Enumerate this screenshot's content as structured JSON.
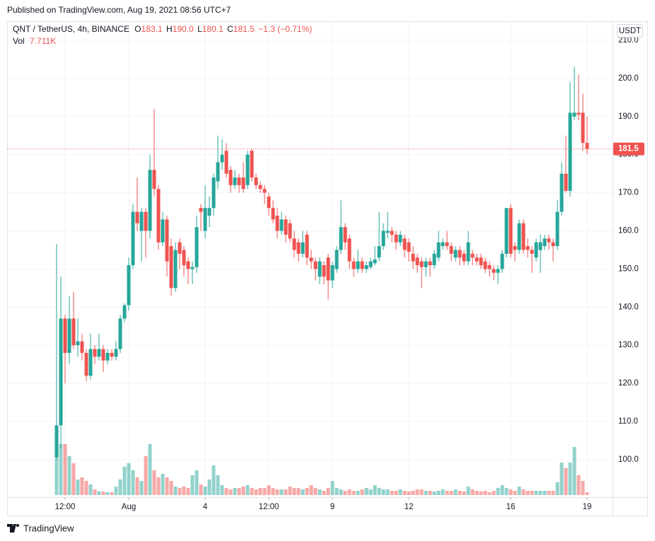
{
  "published": "Published on TradingView.com, Aug 19, 2021 08:56 UTC+7",
  "brand": "TradingView",
  "chart_data": {
    "type": "candlestick",
    "symbol": "QNT / TetherUS, 4h, BINANCE",
    "currency": "USDT",
    "ohlc_letters": [
      "O",
      "H",
      "L",
      "C"
    ],
    "ohlc_labels": [
      "183.1",
      "190.0",
      "180.1",
      "181.5"
    ],
    "change_label": "−1.3 (−0.71%)",
    "volume_title": "Vol",
    "volume_label": "7.711K",
    "up_color": "#26a69a",
    "down_color": "#ef5350",
    "grid": true,
    "candles": [
      [
        100.5,
        156.5,
        100,
        109
      ],
      [
        109,
        148,
        103,
        137
      ],
      [
        137,
        138,
        120,
        128
      ],
      [
        128,
        143,
        125,
        137
      ],
      [
        137,
        144,
        129,
        130
      ],
      [
        130,
        137,
        127,
        131
      ],
      [
        131,
        133,
        126,
        128
      ],
      [
        128,
        129,
        120.5,
        122
      ],
      [
        122,
        133,
        121,
        129
      ],
      [
        129,
        130,
        125,
        127
      ],
      [
        127,
        133,
        126,
        129
      ],
      [
        129,
        130,
        123,
        126
      ],
      [
        126,
        129,
        125,
        128
      ],
      [
        128,
        129,
        126,
        127
      ],
      [
        127,
        131,
        126,
        129
      ],
      [
        129,
        138,
        128,
        137
      ],
      [
        137,
        141,
        136,
        140.5
      ],
      [
        140.5,
        153,
        139,
        151
      ],
      [
        151,
        167,
        150,
        165
      ],
      [
        165,
        174,
        160,
        162
      ],
      [
        160,
        166,
        152,
        165
      ],
      [
        165,
        166,
        153,
        160
      ],
      [
        160,
        180,
        158,
        176
      ],
      [
        176,
        192,
        169,
        171
      ],
      [
        171,
        172,
        155,
        157
      ],
      [
        157,
        165,
        156,
        163
      ],
      [
        163,
        164,
        148,
        152
      ],
      [
        156,
        158,
        143,
        145
      ],
      [
        145,
        157,
        144,
        155
      ],
      [
        157,
        158,
        150,
        154
      ],
      [
        155,
        156,
        148,
        151
      ],
      [
        152,
        153,
        146,
        150
      ],
      [
        150,
        152,
        146,
        150.5
      ],
      [
        150.5,
        164,
        149,
        161
      ],
      [
        166,
        167,
        160,
        165
      ],
      [
        160,
        172,
        158,
        166
      ],
      [
        164,
        169,
        161,
        166
      ],
      [
        166,
        175,
        164,
        174
      ],
      [
        173,
        185,
        171,
        178
      ],
      [
        178,
        184,
        176,
        180
      ],
      [
        181,
        183,
        174,
        175
      ],
      [
        176,
        177,
        170,
        172
      ],
      [
        172,
        176,
        171,
        174
      ],
      [
        174,
        175,
        170,
        172
      ],
      [
        174,
        178,
        170,
        171
      ],
      [
        172,
        181,
        171,
        180
      ],
      [
        181,
        181.5,
        173,
        174
      ],
      [
        174,
        175,
        171,
        172
      ],
      [
        172,
        173,
        170,
        171
      ],
      [
        171,
        172,
        167,
        170
      ],
      [
        169,
        170,
        164,
        166
      ],
      [
        166,
        168,
        162,
        163
      ],
      [
        164,
        166,
        158,
        160
      ],
      [
        160,
        165,
        159,
        163
      ],
      [
        163,
        164,
        157,
        159
      ],
      [
        162,
        163,
        157,
        158
      ],
      [
        158,
        160,
        153,
        155
      ],
      [
        157,
        158,
        152,
        154
      ],
      [
        154,
        160,
        153,
        157
      ],
      [
        159,
        160,
        151,
        153
      ],
      [
        153,
        155,
        150,
        152
      ],
      [
        152,
        153,
        147,
        150
      ],
      [
        148,
        153,
        146,
        152
      ],
      [
        151,
        152,
        146,
        148
      ],
      [
        153,
        154,
        142,
        147
      ],
      [
        147,
        152,
        145,
        151
      ],
      [
        150,
        156,
        149,
        155
      ],
      [
        155,
        168,
        154,
        161
      ],
      [
        161,
        162,
        155,
        157
      ],
      [
        158,
        159,
        150,
        152
      ],
      [
        152,
        153,
        148,
        150
      ],
      [
        150,
        155,
        149,
        152
      ],
      [
        152,
        153,
        149,
        150
      ],
      [
        150,
        152,
        149,
        151
      ],
      [
        150.5,
        153,
        150,
        152
      ],
      [
        151.5,
        156,
        151,
        152.5
      ],
      [
        153,
        165,
        152,
        156
      ],
      [
        156,
        162,
        155,
        160
      ],
      [
        159.5,
        165,
        158,
        160
      ],
      [
        160,
        161,
        157,
        159
      ],
      [
        159,
        160,
        155,
        157
      ],
      [
        157,
        160,
        156,
        159
      ],
      [
        158,
        159,
        153,
        155
      ],
      [
        157,
        158,
        152,
        154.5
      ],
      [
        154,
        156,
        150,
        152
      ],
      [
        153,
        154,
        149,
        151
      ],
      [
        152,
        153,
        145,
        150.5
      ],
      [
        150.5,
        153,
        148,
        152
      ],
      [
        152,
        153,
        148,
        151
      ],
      [
        151,
        155,
        150,
        154
      ],
      [
        153,
        160,
        152,
        157
      ],
      [
        156,
        158,
        155,
        157
      ],
      [
        157,
        160,
        155,
        156
      ],
      [
        156,
        157,
        152,
        154
      ],
      [
        153,
        156,
        152,
        155
      ],
      [
        155,
        156,
        151,
        153
      ],
      [
        154,
        155,
        151,
        152
      ],
      [
        152,
        160,
        151,
        157
      ],
      [
        154,
        155,
        151,
        153
      ],
      [
        153,
        154,
        151,
        152
      ],
      [
        153,
        154,
        150,
        151
      ],
      [
        152,
        153,
        149,
        150
      ],
      [
        151,
        152,
        148,
        150
      ],
      [
        150,
        151,
        147,
        149
      ],
      [
        149,
        151,
        146,
        150
      ],
      [
        150,
        155,
        149,
        154
      ],
      [
        154,
        166,
        153,
        166
      ],
      [
        166,
        167,
        153,
        154
      ],
      [
        156,
        157,
        152,
        155
      ],
      [
        155,
        163,
        154,
        162
      ],
      [
        162,
        163,
        154,
        155
      ],
      [
        156,
        158,
        153,
        155
      ],
      [
        155,
        156,
        149,
        154
      ],
      [
        153,
        158,
        152,
        157
      ],
      [
        155,
        159,
        149,
        157
      ],
      [
        156,
        159,
        155,
        158
      ],
      [
        158,
        159,
        155,
        157
      ],
      [
        157,
        158,
        152,
        156
      ],
      [
        156,
        168,
        155,
        165
      ],
      [
        165,
        178,
        164,
        175
      ],
      [
        175,
        185,
        170,
        170.5
      ],
      [
        170.5,
        199,
        169,
        191
      ],
      [
        190,
        203,
        189,
        191
      ],
      [
        191,
        201,
        189,
        190.5
      ],
      [
        191,
        196,
        181,
        183.1
      ],
      [
        183.1,
        190,
        180.1,
        181.5
      ]
    ],
    "volume": [
      104,
      144,
      144,
      110,
      90,
      44,
      50,
      40,
      30,
      16,
      10,
      10,
      8,
      8,
      24,
      44,
      80,
      90,
      70,
      50,
      40,
      110,
      144,
      70,
      50,
      60,
      50,
      40,
      24,
      20,
      24,
      20,
      56,
      70,
      30,
      24,
      44,
      84,
      56,
      28,
      20,
      16,
      20,
      20,
      24,
      28,
      20,
      16,
      20,
      20,
      28,
      20,
      16,
      16,
      16,
      24,
      20,
      20,
      16,
      20,
      28,
      20,
      16,
      12,
      20,
      40,
      20,
      16,
      12,
      16,
      12,
      12,
      16,
      20,
      16,
      28,
      20,
      16,
      16,
      12,
      12,
      16,
      12,
      10,
      12,
      16,
      16,
      12,
      12,
      10,
      12,
      16,
      12,
      12,
      16,
      12,
      10,
      24,
      16,
      12,
      10,
      12,
      8,
      12,
      20,
      28,
      20,
      16,
      12,
      24,
      16,
      12,
      12,
      12,
      12,
      12,
      12,
      12,
      36,
      92,
      76,
      92,
      136,
      56,
      40,
      7.711
    ],
    "xlim": [
      -11.67,
      131
    ],
    "xticks": [
      {
        "value": 2,
        "label": "12:00"
      },
      {
        "value": 17,
        "label": "Aug"
      },
      {
        "value": 35,
        "label": "4"
      },
      {
        "value": 50,
        "label": "12:00"
      },
      {
        "value": 65,
        "label": "9"
      },
      {
        "value": 83,
        "label": "12"
      },
      {
        "value": 107,
        "label": "16"
      },
      {
        "value": 125,
        "label": "19"
      }
    ],
    "ylim": [
      90.15,
      215.0
    ],
    "yticks": [
      {
        "value": 100,
        "label": "100.0"
      },
      {
        "value": 110,
        "label": "110.0"
      },
      {
        "value": 120,
        "label": "120.0"
      },
      {
        "value": 130,
        "label": "130.0"
      },
      {
        "value": 140,
        "label": "140.0"
      },
      {
        "value": 150,
        "label": "150.0"
      },
      {
        "value": 160,
        "label": "160.0"
      },
      {
        "value": 170,
        "label": "170.0"
      },
      {
        "value": 180,
        "label": "180.0"
      },
      {
        "value": 190,
        "label": "190.0"
      },
      {
        "value": 200,
        "label": "200.0"
      },
      {
        "value": 210,
        "label": "210.0"
      }
    ]
  }
}
